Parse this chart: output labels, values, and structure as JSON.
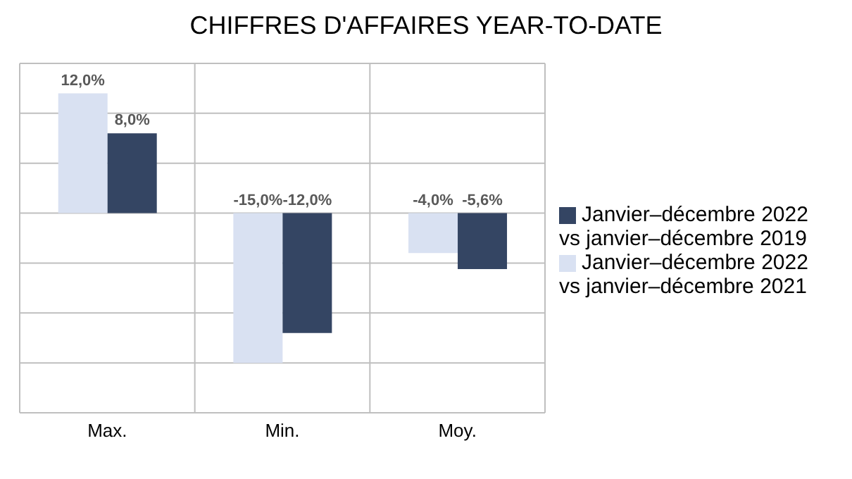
{
  "chart_data": {
    "type": "bar",
    "title": "CHIFFRES D'AFFAIRES YEAR-TO-DATE",
    "categories": [
      "Max.",
      "Min.",
      "Moy."
    ],
    "series": [
      {
        "name": "Janvier–décembre 2022 vs janvier–décembre 2021",
        "color": "#d9e1f2",
        "values": [
          12.0,
          -15.0,
          -4.0
        ],
        "value_labels": [
          "12,0%",
          "-15,0%",
          "-4,0%"
        ]
      },
      {
        "name": "Janvier–décembre 2022 vs janvier–décembre 2019",
        "color": "#344563",
        "values": [
          8.0,
          -12.0,
          -5.6
        ],
        "value_labels": [
          "8,0%",
          "-12,0%",
          "-5,6%"
        ]
      }
    ],
    "ylim": [
      -20,
      15
    ],
    "yticks": [
      {
        "value": -20,
        "label": null
      },
      {
        "value": -15,
        "label": null
      },
      {
        "value": -10,
        "label": null
      },
      {
        "value": -5,
        "label": null
      },
      {
        "value": 0,
        "label": null
      },
      {
        "value": 5,
        "label": null
      },
      {
        "value": 10,
        "label": null
      },
      {
        "value": 15,
        "label": null
      }
    ],
    "tick_labels": "x",
    "grid": true,
    "legend": "right"
  }
}
